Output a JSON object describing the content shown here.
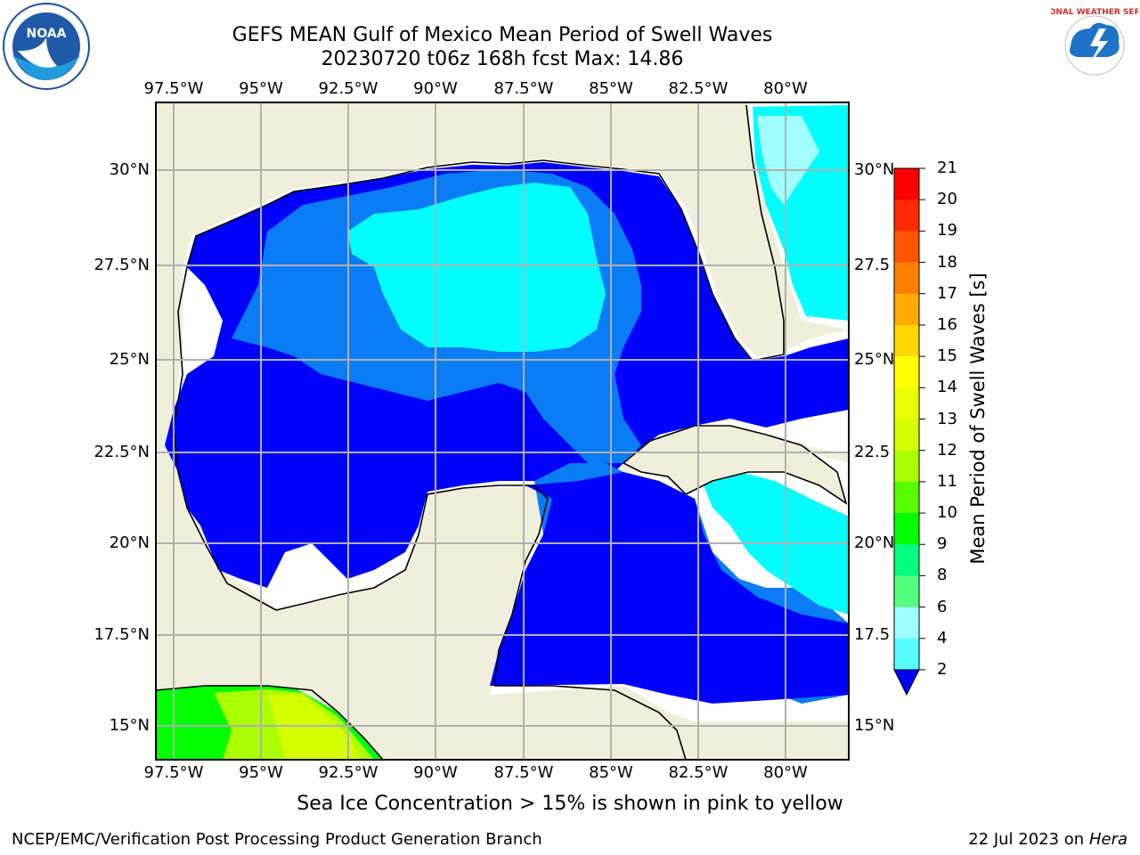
{
  "title": {
    "line1": "GEFS MEAN Gulf of Mexico Mean Period of Swell Waves",
    "line2": "20230720 t06z 168h fcst   Max: 14.86"
  },
  "logos": {
    "left": {
      "icon": "noaa-logo",
      "text": "NOAA"
    },
    "right": {
      "icon": "national-weather-service-logo",
      "text": "NATIONAL WEATHER SERVICE"
    }
  },
  "map": {
    "lon_ticks": [
      "97.5°W",
      "95°W",
      "92.5°W",
      "90°W",
      "87.5°W",
      "85°W",
      "82.5°W",
      "80°W"
    ],
    "lat_ticks_left": [
      "30°N",
      "27.5°N",
      "25°N",
      "22.5°N",
      "20°N",
      "17.5°N",
      "15°N"
    ],
    "lat_ticks_right": [
      "30°N",
      "27.5",
      "25°N",
      "22.5",
      "20°N",
      "17.5",
      "15°N"
    ],
    "colors": {
      "land": "#efeedb",
      "ocean_low": "#0000ff",
      "ocean_mid": "#0a7cf5",
      "ocean_high": "#00ffff",
      "grid": "#b0b0b0"
    }
  },
  "colorbar": {
    "label": "Mean Period of Swell Waves [s]",
    "ticks": [
      "21",
      "20",
      "19",
      "18",
      "17",
      "16",
      "15",
      "14",
      "13",
      "12",
      "11",
      "10",
      "9",
      "8",
      "6",
      "4",
      "2"
    ],
    "colors": [
      "#ff0000",
      "#ff2a00",
      "#ff5500",
      "#ff8000",
      "#ffaa00",
      "#ffd500",
      "#ffff00",
      "#eaff00",
      "#d4ff00",
      "#aaff00",
      "#55ff00",
      "#00ff00",
      "#00ff80",
      "#55ff80",
      "#a0ffff",
      "#55ffff",
      "#00e8ff",
      "#0080ff"
    ],
    "extend_color": "#0000ff"
  },
  "footer": {
    "note": "Sea Ice Concentration > 15% is shown in pink to yellow",
    "credit": "NCEP/EMC/Verification Post Processing Product Generation Branch",
    "date": "22 Jul 2023 on ",
    "host": "Hera"
  }
}
